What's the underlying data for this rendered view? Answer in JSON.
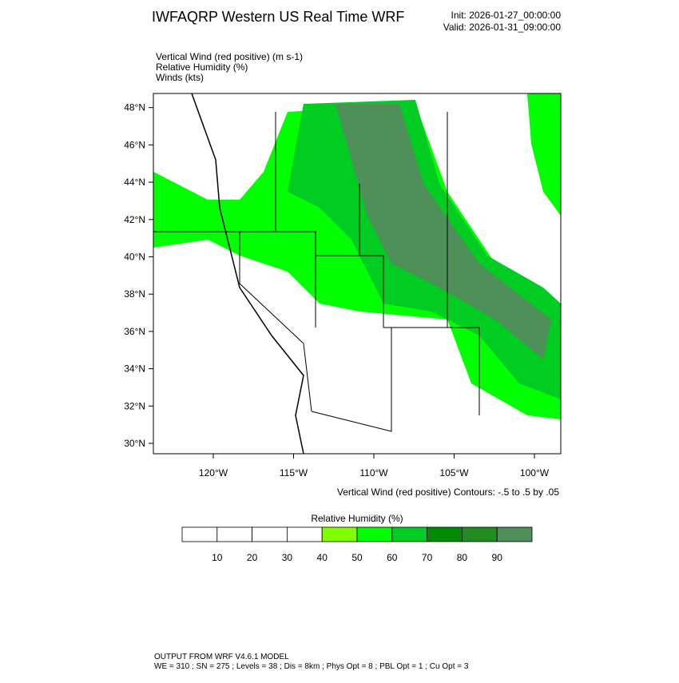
{
  "header": {
    "title": "IWFAQRP Western US Real Time WRF",
    "init": "Init: 2026-01-27_00:00:00",
    "valid": "Valid: 2026-01-31_09:00:00"
  },
  "fields": [
    "Vertical Wind (red positive)   (m s-1)",
    "Relative Humidity   (%)",
    "Winds   (kts)"
  ],
  "map": {
    "lat_labels": [
      "30°N",
      "32°N",
      "34°N",
      "36°N",
      "38°N",
      "40°N",
      "42°N",
      "44°N",
      "46°N",
      "48°N"
    ],
    "lon_labels": [
      "120°W",
      "115°W",
      "110°W",
      "105°W",
      "100°W"
    ],
    "contour_note": "Vertical Wind (red positive) Contours: -.5 to .5 by .05"
  },
  "colorbar": {
    "title": "Relative Humidity   (%)",
    "colors": [
      "#ffffff",
      "#ffffff",
      "#ffffff",
      "#ffffff",
      "#80ff00",
      "#00ff00",
      "#00cc22",
      "#008c00",
      "#228b22",
      "#4f8f5a"
    ],
    "labels": [
      "10",
      "20",
      "30",
      "40",
      "50",
      "60",
      "70",
      "80",
      "90"
    ]
  },
  "footer": {
    "line1": "OUTPUT FROM WRF V4.6.1 MODEL",
    "line2": "WE = 310 ; SN = 275 ; Levels = 38 ; Dis = 8km ; Phys Opt = 8 ; PBL Opt = 1 ; Cu Opt = 3"
  }
}
